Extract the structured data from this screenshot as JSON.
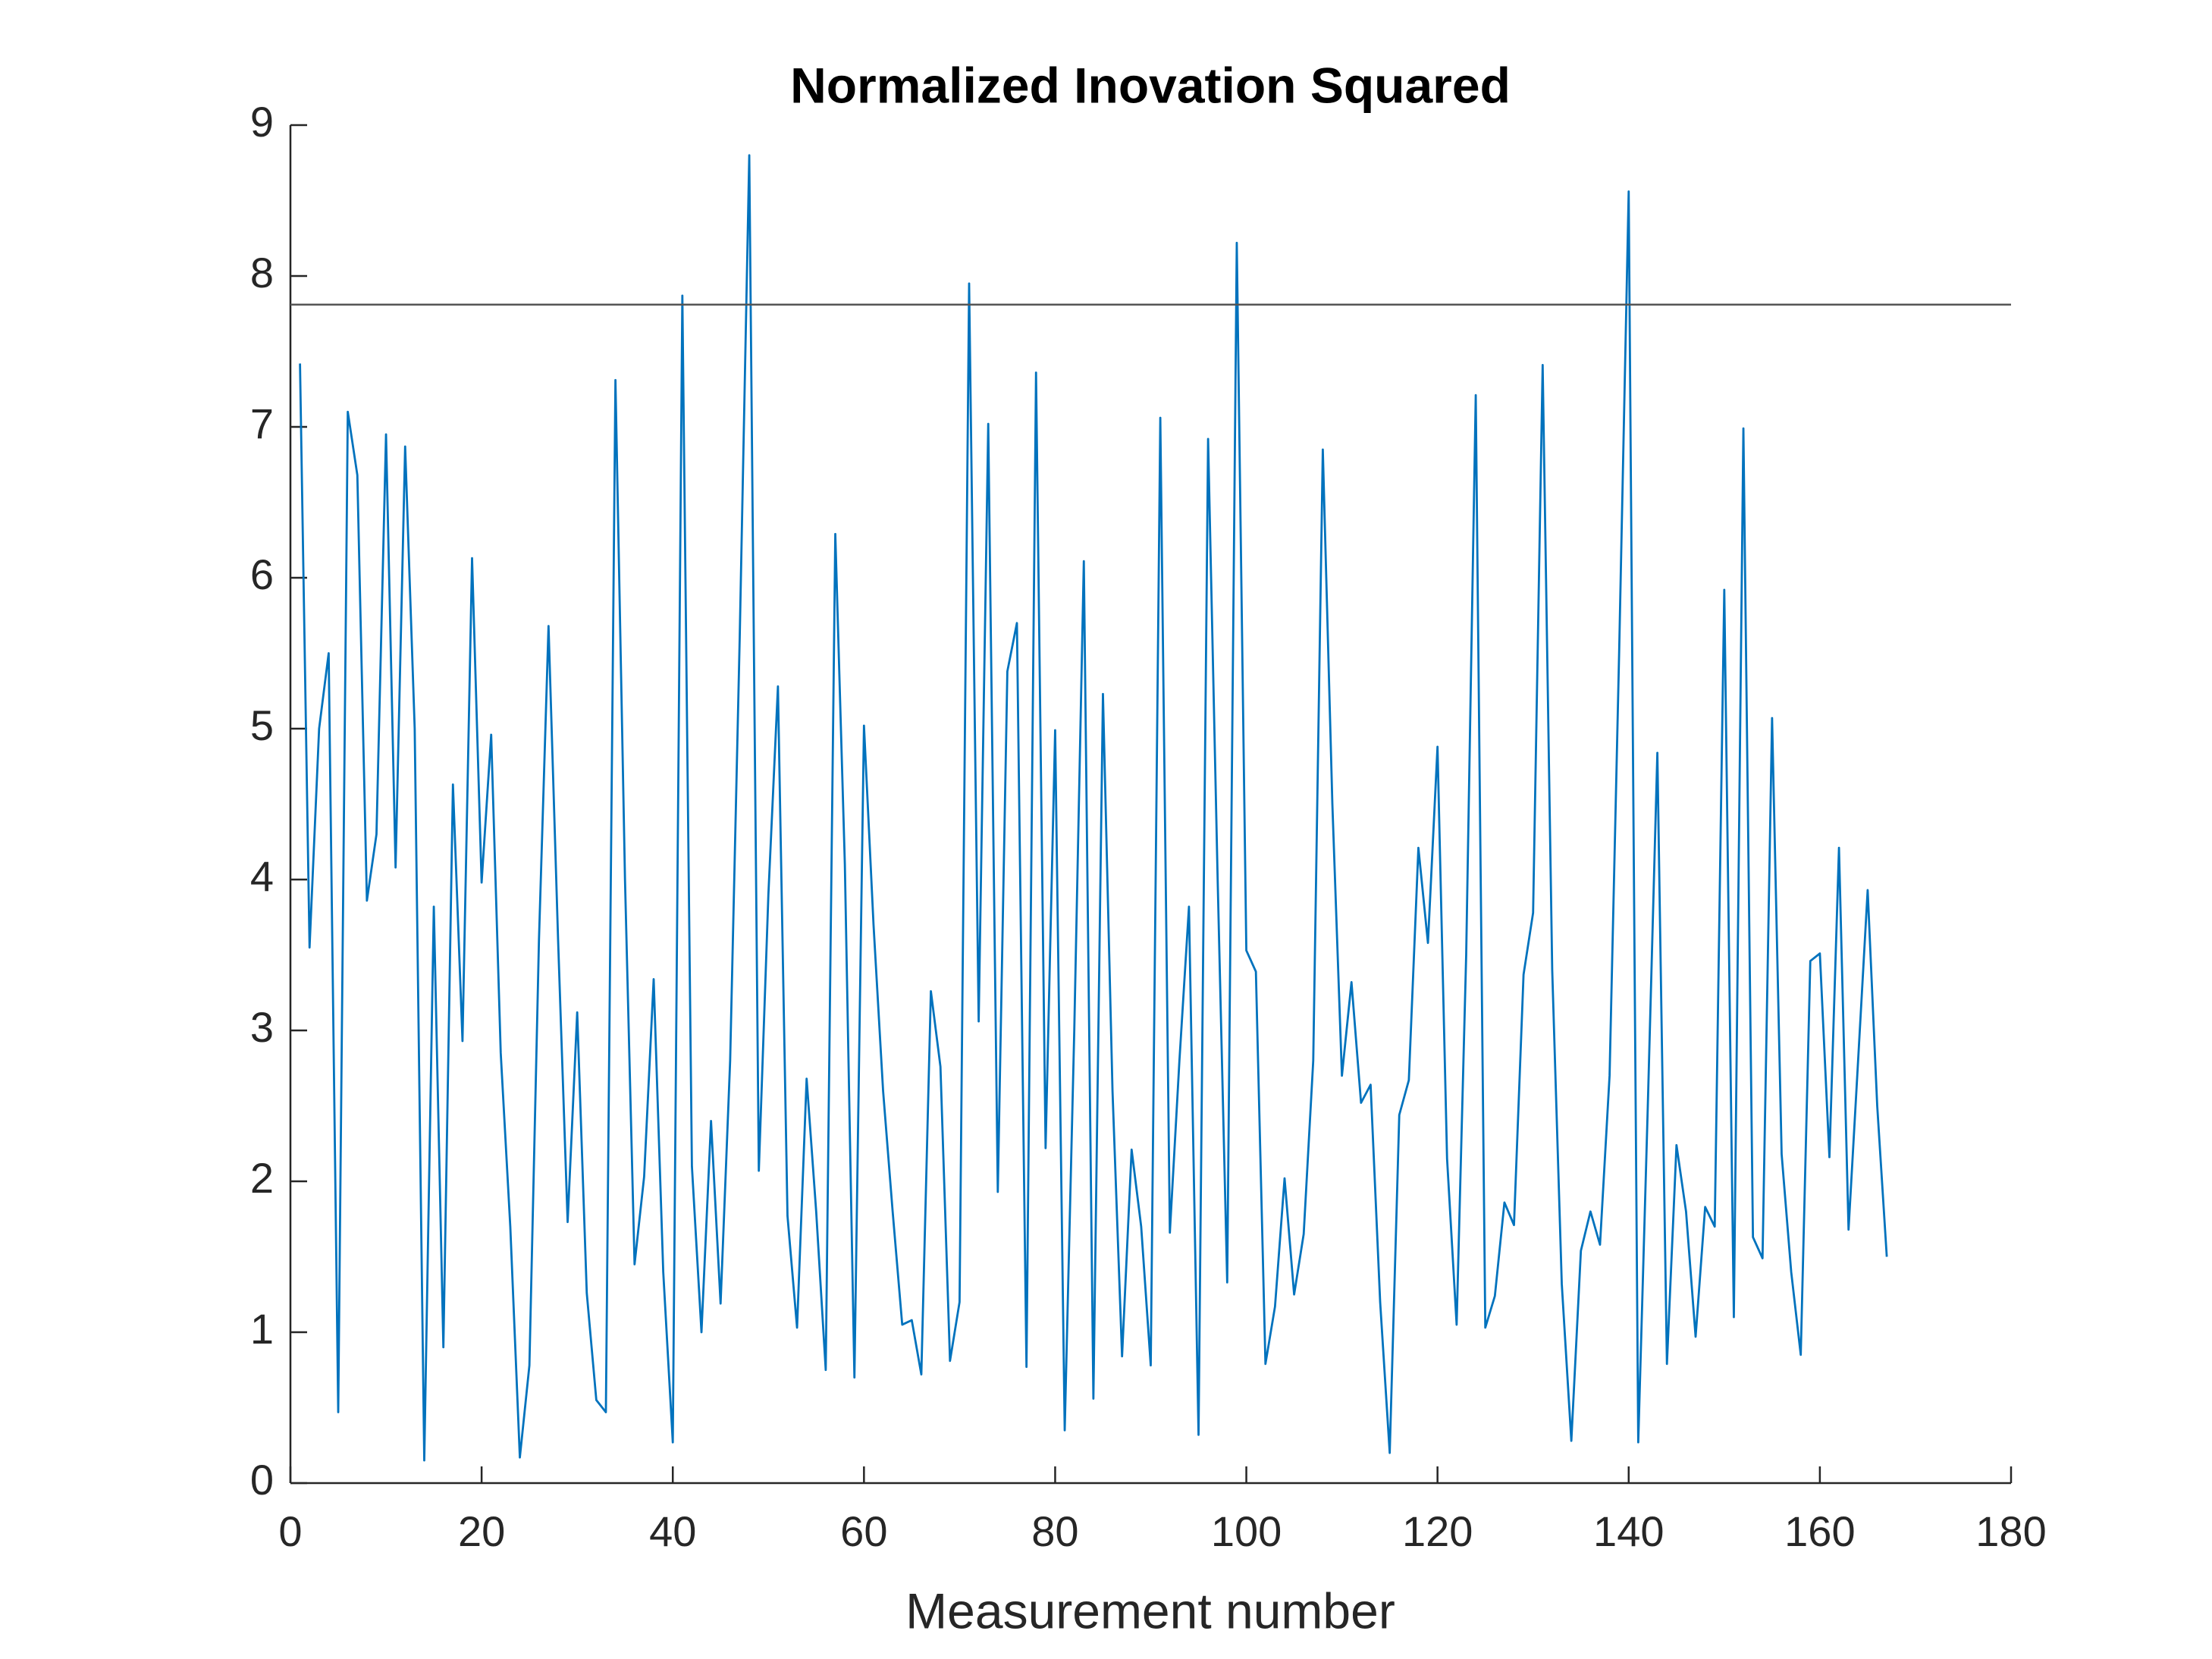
{
  "chart_data": {
    "type": "line",
    "title": "Normalized Inovation Squared",
    "x_label": "Measurement number",
    "x": [
      1,
      2,
      3,
      4,
      5,
      6,
      7,
      8,
      9,
      10,
      11,
      12,
      13,
      14,
      15,
      16,
      17,
      18,
      19,
      20,
      21,
      22,
      23,
      24,
      25,
      26,
      27,
      28,
      29,
      30,
      31,
      32,
      33,
      34,
      35,
      36,
      37,
      38,
      39,
      40,
      41,
      42,
      43,
      44,
      45,
      46,
      47,
      48,
      49,
      50,
      51,
      52,
      53,
      54,
      55,
      56,
      57,
      58,
      59,
      60,
      61,
      62,
      63,
      64,
      65,
      66,
      67,
      68,
      69,
      70,
      71,
      72,
      73,
      74,
      75,
      76,
      77,
      78,
      79,
      80,
      81,
      82,
      83,
      84,
      85,
      86,
      87,
      88,
      89,
      90,
      91,
      92,
      93,
      94,
      95,
      96,
      97,
      98,
      99,
      100,
      101,
      102,
      103,
      104,
      105,
      106,
      107,
      108,
      109,
      110,
      111,
      112,
      113,
      114,
      115,
      116,
      117,
      118,
      119,
      120,
      121,
      122,
      123,
      124,
      125,
      126,
      127,
      128,
      129,
      130,
      131,
      132,
      133,
      134,
      135,
      136,
      137,
      138,
      139,
      140,
      141,
      142,
      143,
      144,
      145,
      146,
      147,
      148,
      149,
      150,
      151,
      152,
      153,
      154,
      155,
      156,
      157,
      158,
      159,
      160,
      161,
      162,
      163,
      164,
      165,
      166,
      167
    ],
    "values": [
      7.42,
      3.55,
      5.0,
      5.5,
      0.47,
      7.1,
      6.68,
      3.86,
      4.3,
      6.95,
      4.08,
      6.87,
      5.0,
      0.15,
      3.82,
      0.9,
      4.63,
      2.93,
      6.13,
      3.98,
      4.96,
      2.85,
      1.7,
      0.17,
      0.78,
      3.6,
      5.68,
      3.6,
      1.73,
      3.12,
      1.26,
      0.55,
      0.47,
      7.31,
      4.0,
      1.45,
      2.03,
      3.34,
      1.4,
      0.27,
      7.87,
      2.1,
      1.0,
      2.4,
      1.19,
      2.8,
      5.6,
      8.8,
      2.07,
      3.9,
      5.28,
      1.77,
      1.03,
      2.68,
      1.8,
      0.75,
      6.29,
      4.1,
      0.7,
      5.02,
      3.7,
      2.6,
      1.8,
      1.05,
      1.08,
      0.72,
      3.26,
      2.76,
      0.81,
      1.2,
      7.95,
      3.06,
      7.02,
      1.93,
      5.38,
      5.7,
      0.77,
      7.36,
      2.22,
      4.99,
      0.35,
      3.0,
      6.11,
      0.56,
      5.23,
      2.6,
      0.84,
      2.21,
      1.7,
      0.78,
      7.06,
      1.66,
      2.8,
      3.82,
      0.32,
      6.92,
      4.0,
      1.33,
      8.22,
      3.53,
      3.39,
      0.79,
      1.17,
      2.02,
      1.25,
      1.65,
      2.8,
      6.85,
      4.5,
      2.7,
      3.32,
      2.52,
      2.64,
      1.2,
      0.2,
      2.44,
      2.67,
      4.21,
      3.58,
      4.88,
      2.15,
      1.05,
      3.5,
      7.21,
      1.03,
      1.24,
      1.86,
      1.71,
      3.37,
      3.78,
      7.41,
      3.4,
      1.32,
      0.28,
      1.54,
      1.8,
      1.58,
      2.7,
      5.5,
      8.56,
      0.27,
      2.5,
      4.84,
      0.79,
      2.24,
      1.8,
      0.97,
      1.83,
      1.7,
      5.92,
      1.1,
      6.99,
      1.63,
      1.49,
      5.07,
      2.18,
      1.4,
      0.85,
      3.46,
      3.51,
      2.16,
      4.21,
      1.68,
      2.8,
      3.93,
      2.5,
      1.5
    ],
    "color": "#0072bd",
    "reference_line": {
      "value": 7.81,
      "color": "#555555"
    },
    "xlim": [
      0,
      180
    ],
    "xticks": [
      0,
      20,
      40,
      60,
      80,
      100,
      120,
      140,
      160,
      180
    ],
    "ylim": [
      0,
      9
    ],
    "yticks": [
      0,
      1,
      2,
      3,
      4,
      5,
      6,
      7,
      8,
      9
    ]
  }
}
